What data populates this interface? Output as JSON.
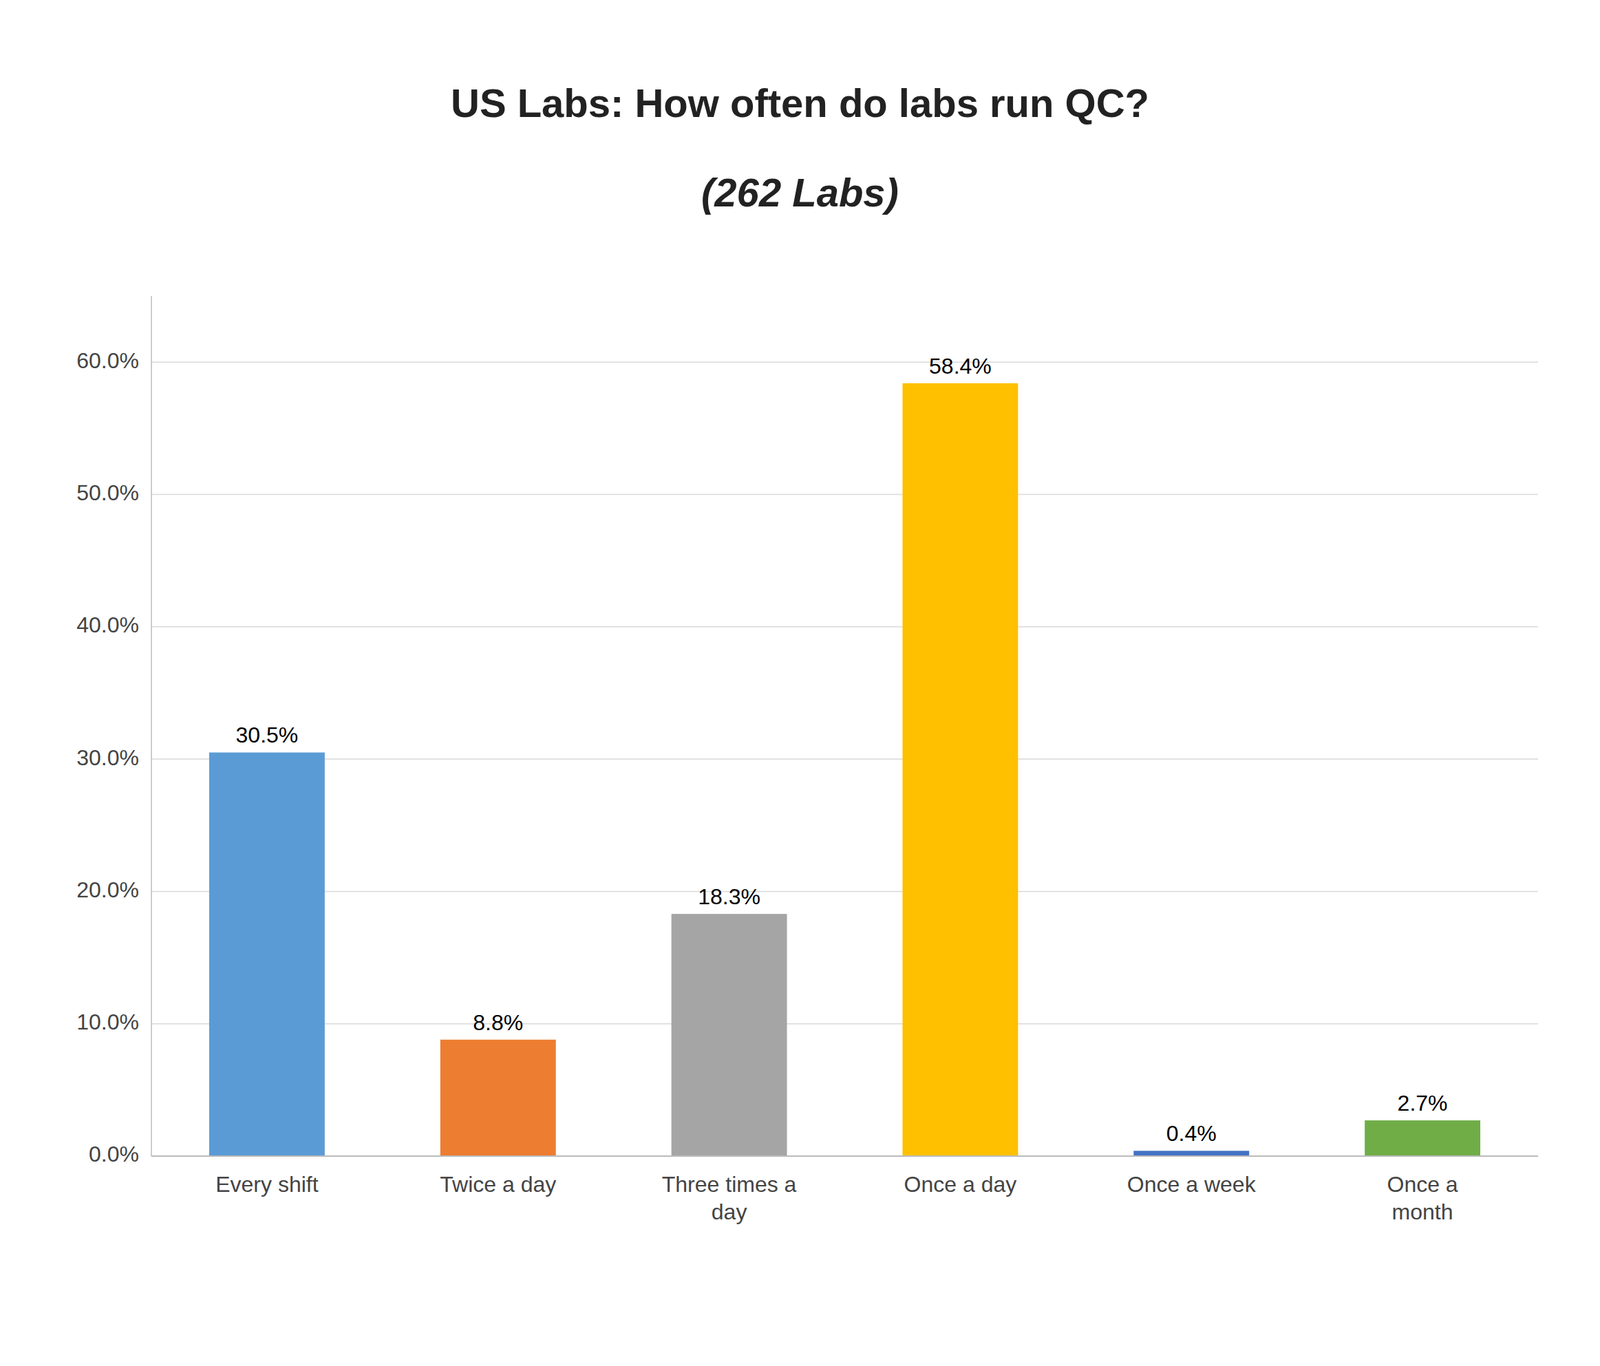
{
  "chart_data": {
    "type": "bar",
    "title": "US Labs: How often do labs run QC?",
    "subtitle": "(262 Labs)",
    "categories": [
      "Every shift",
      "Twice a day",
      "Three times a\nday",
      "Once a day",
      "Once a week",
      "Once a\nmonth"
    ],
    "values": [
      30.5,
      8.8,
      18.3,
      58.4,
      0.4,
      2.7
    ],
    "value_labels": [
      "30.5%",
      "8.8%",
      "18.3%",
      "58.4%",
      "0.4%",
      "2.7%"
    ],
    "colors": [
      "#5B9BD5",
      "#ED7D31",
      "#A5A5A5",
      "#FFC000",
      "#4472C4",
      "#70AD47"
    ],
    "ylim": [
      0,
      65
    ],
    "yticks": [
      {
        "value": 0.0,
        "label": "0.0%"
      },
      {
        "value": 10.0,
        "label": "10.0%"
      },
      {
        "value": 20.0,
        "label": "20.0%"
      },
      {
        "value": 30.0,
        "label": "30.0%"
      },
      {
        "value": 40.0,
        "label": "40.0%"
      },
      {
        "value": 50.0,
        "label": "50.0%"
      },
      {
        "value": 60.0,
        "label": "60.0%"
      }
    ],
    "grid": true,
    "data_labels": true
  }
}
